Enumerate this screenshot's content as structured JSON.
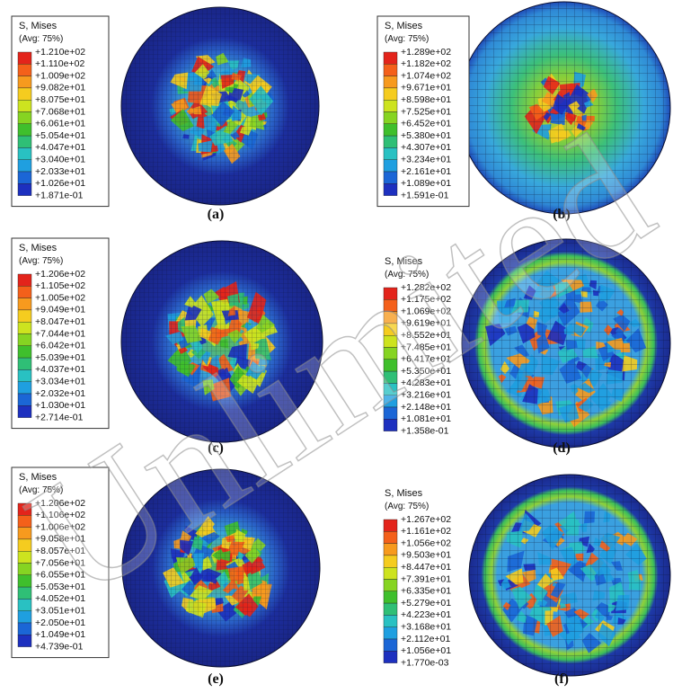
{
  "watermark": "Unlimited",
  "panels": [
    {
      "legend": {
        "title": "S, Mises",
        "subtitle": "(Avg: 75%)",
        "labels": [
          "+1.210e+02",
          "+1.110e+02",
          "+1.009e+02",
          "+9.082e+01",
          "+8.075e+01",
          "+7.068e+01",
          "+6.061e+01",
          "+5.054e+01",
          "+4.047e+01",
          "+3.040e+01",
          "+2.033e+01",
          "+1.026e+01",
          "+1.871e-01"
        ]
      },
      "caption": "(a)"
    },
    {
      "legend": {
        "title": "S, Mises",
        "subtitle": "(Avg: 75%)",
        "labels": [
          "+1.289e+02",
          "+1.182e+02",
          "+1.074e+02",
          "+9.671e+01",
          "+8.598e+01",
          "+7.525e+01",
          "+6.452e+01",
          "+5.380e+01",
          "+4.307e+01",
          "+3.234e+01",
          "+2.161e+01",
          "+1.089e+01",
          "+1.591e-01"
        ]
      },
      "caption": "(b)"
    },
    {
      "legend": {
        "title": "S, Mises",
        "subtitle": "(Avg: 75%)",
        "labels": [
          "+1.206e+02",
          "+1.105e+02",
          "+1.005e+02",
          "+9.049e+01",
          "+8.047e+01",
          "+7.044e+01",
          "+6.042e+01",
          "+5.039e+01",
          "+4.037e+01",
          "+3.034e+01",
          "+2.032e+01",
          "+1.030e+01",
          "+2.714e-01"
        ]
      },
      "caption": "(c)"
    },
    {
      "legend": {
        "title": "S, Mises",
        "subtitle": "(Avg: 75%)",
        "labels": [
          "+1.282e+02",
          "+1.175e+02",
          "+1.069e+02",
          "+9.619e+01",
          "+8.552e+01",
          "+7.485e+01",
          "+6.417e+01",
          "+5.350e+01",
          "+4.283e+01",
          "+3.216e+01",
          "+2.148e+01",
          "+1.081e+01",
          "+1.358e-01"
        ]
      },
      "caption": "(d)"
    },
    {
      "legend": {
        "title": "S, Mises",
        "subtitle": "(Avg: 75%)",
        "labels": [
          "+1.206e+02",
          "+1.106e+02",
          "+1.006e+02",
          "+9.058e+01",
          "+8.057e+01",
          "+7.056e+01",
          "+6.055e+01",
          "+5.053e+01",
          "+4.052e+01",
          "+3.051e+01",
          "+2.050e+01",
          "+1.049e+01",
          "+4.739e-01"
        ]
      },
      "caption": "(e)"
    },
    {
      "legend": {
        "title": "S, Mises",
        "subtitle": "(Avg: 75%)",
        "labels": [
          "+1.267e+02",
          "+1.161e+02",
          "+1.056e+02",
          "+9.503e+01",
          "+8.447e+01",
          "+7.391e+01",
          "+6.335e+01",
          "+5.279e+01",
          "+4.223e+01",
          "+3.168e+01",
          "+2.112e+01",
          "+1.056e+01",
          "+1.770e-03"
        ]
      },
      "caption": "(f)"
    }
  ]
}
